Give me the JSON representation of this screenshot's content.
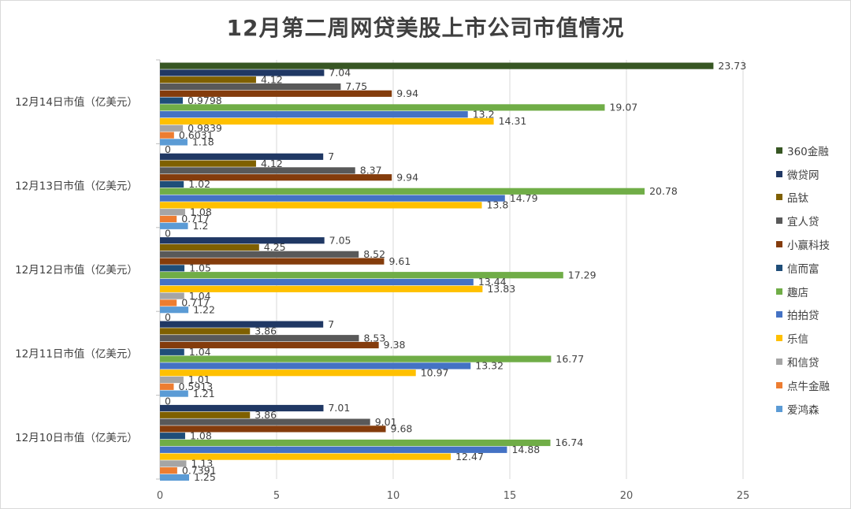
{
  "chart_data": {
    "type": "bar",
    "orientation": "horizontal",
    "title": "12月第二周网贷美股上市公司市值情况",
    "categories": [
      "12月14日市值（亿美元）",
      "12月13日市值（亿美元）",
      "12月12日市值（亿美元）",
      "12月11日市值（亿美元）",
      "12月10日市值（亿美元）"
    ],
    "xlim": [
      0,
      25
    ],
    "xticks": [
      0,
      5,
      10,
      15,
      20,
      25
    ],
    "grid": true,
    "legend_position": "right",
    "series": [
      {
        "name": "360金融",
        "color": "#375623",
        "values": [
          23.73,
          0,
          0,
          0,
          0
        ],
        "labels": [
          "23.73",
          "0",
          "0",
          "0",
          "0"
        ]
      },
      {
        "name": "微贷网",
        "color": "#203864",
        "values": [
          7.04,
          7,
          7.05,
          7,
          7.01
        ],
        "labels": [
          "7.04",
          "7",
          "7.05",
          "7",
          "7.01"
        ]
      },
      {
        "name": "品钛",
        "color": "#7f6000",
        "values": [
          4.12,
          4.12,
          4.25,
          3.86,
          3.86
        ],
        "labels": [
          "4.12",
          "4.12",
          "4.25",
          "3.86",
          "3.86"
        ]
      },
      {
        "name": "宜人贷",
        "color": "#595959",
        "values": [
          7.75,
          8.37,
          8.52,
          8.53,
          9.01
        ],
        "labels": [
          "7.75",
          "8.37",
          "8.52",
          "8.53",
          "9.01"
        ]
      },
      {
        "name": "小赢科技",
        "color": "#843c0c",
        "values": [
          9.94,
          9.94,
          9.61,
          9.38,
          9.68
        ],
        "labels": [
          "9.94",
          "9.94",
          "9.61",
          "9.38",
          "9.68"
        ]
      },
      {
        "name": "信而富",
        "color": "#1f4e79",
        "values": [
          0.9798,
          1.02,
          1.05,
          1.04,
          1.08
        ],
        "labels": [
          "0.9798",
          "1.02",
          "1.05",
          "1.04",
          "1.08"
        ]
      },
      {
        "name": "趣店",
        "color": "#70ad47",
        "values": [
          19.07,
          20.78,
          17.29,
          16.77,
          16.74
        ],
        "labels": [
          "19.07",
          "20.78",
          "17.29",
          "16.77",
          "16.74"
        ]
      },
      {
        "name": "拍拍贷",
        "color": "#4472c4",
        "values": [
          13.2,
          14.79,
          13.44,
          13.32,
          14.88
        ],
        "labels": [
          "13.2",
          "14.79",
          "13.44",
          "13.32",
          "14.88"
        ]
      },
      {
        "name": "乐信",
        "color": "#ffc000",
        "values": [
          14.31,
          13.8,
          13.83,
          10.97,
          12.47
        ],
        "labels": [
          "14.31",
          "13.8",
          "13.83",
          "10.97",
          "12.47"
        ]
      },
      {
        "name": "和信贷",
        "color": "#a5a5a5",
        "values": [
          0.9839,
          1.08,
          1.04,
          1.01,
          1.13
        ],
        "labels": [
          "0.9839",
          "1.08",
          "1.04",
          "1.01",
          "1.13"
        ]
      },
      {
        "name": "点牛金融",
        "color": "#ed7d31",
        "values": [
          0.6031,
          0.717,
          0.717,
          0.5913,
          0.7391
        ],
        "labels": [
          "0.6031",
          "0.717",
          "0.717",
          "0.5913",
          "0.7391"
        ]
      },
      {
        "name": "爱鸿森",
        "color": "#5b9bd5",
        "values": [
          1.18,
          1.2,
          1.22,
          1.21,
          1.25
        ],
        "labels": [
          "1.18",
          "1.2",
          "1.22",
          "1.21",
          "1.25"
        ]
      }
    ]
  }
}
